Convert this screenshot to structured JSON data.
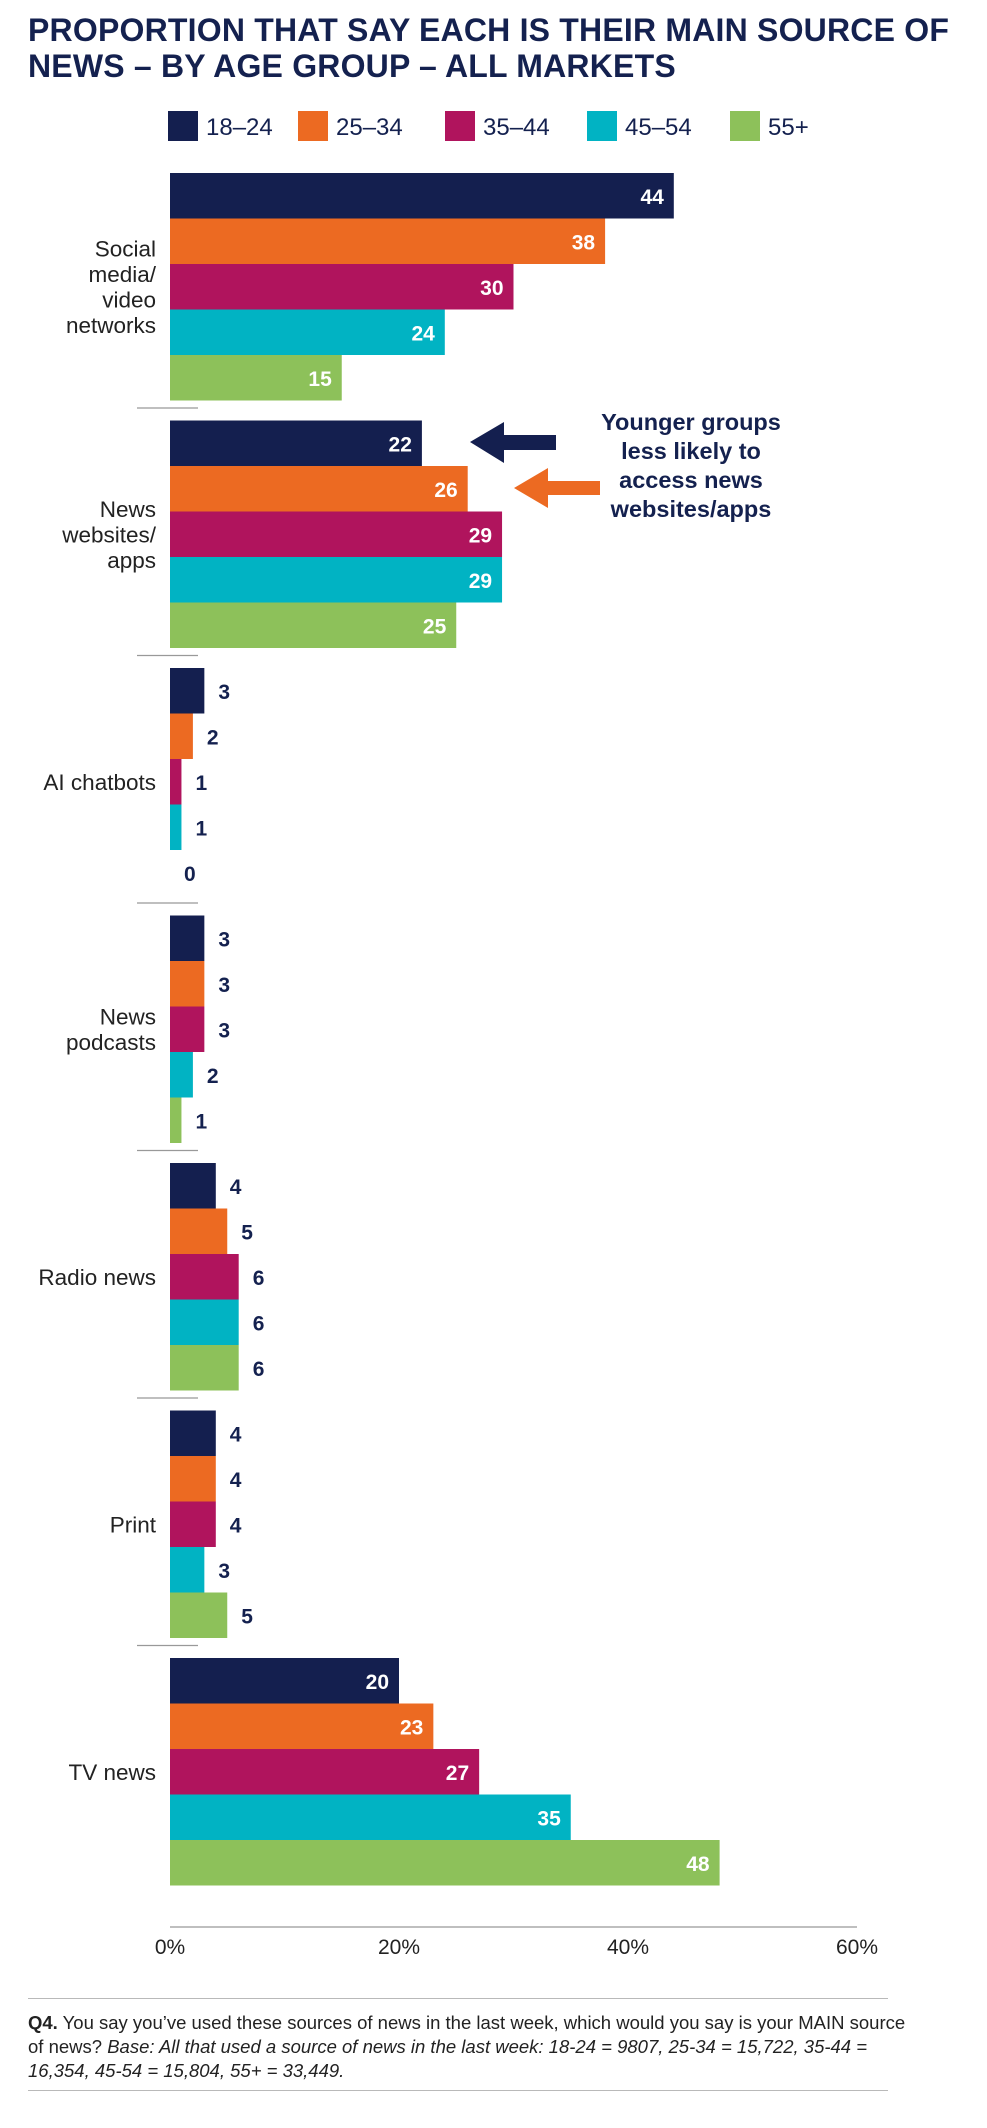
{
  "chart_data": {
    "type": "bar",
    "orientation": "horizontal",
    "title_lines": [
      "PROPORTION THAT SAY EACH IS THEIR MAIN SOURCE OF",
      "NEWS – BY AGE GROUP – ALL MARKETS"
    ],
    "categories": [
      {
        "name": "Social media/video networks",
        "label_lines": [
          "Social",
          "media/",
          "video",
          "networks"
        ]
      },
      {
        "name": "News websites/apps",
        "label_lines": [
          "News",
          "websites/",
          "apps"
        ]
      },
      {
        "name": "AI chatbots",
        "label_lines": [
          "AI chatbots"
        ]
      },
      {
        "name": "News podcasts",
        "label_lines": [
          "News",
          "podcasts"
        ]
      },
      {
        "name": "Radio news",
        "label_lines": [
          "Radio news"
        ]
      },
      {
        "name": "Print",
        "label_lines": [
          "Print"
        ]
      },
      {
        "name": "TV news",
        "label_lines": [
          "TV news"
        ]
      }
    ],
    "series": [
      {
        "name": "18–24",
        "color": "#141f4f",
        "values": [
          44,
          22,
          3,
          3,
          4,
          4,
          20
        ]
      },
      {
        "name": "25–34",
        "color": "#ec6a22",
        "values": [
          38,
          26,
          2,
          3,
          5,
          4,
          23
        ]
      },
      {
        "name": "35–44",
        "color": "#b0145d",
        "values": [
          30,
          29,
          1,
          3,
          6,
          4,
          27
        ]
      },
      {
        "name": "45–54",
        "color": "#01b3c3",
        "values": [
          24,
          29,
          1,
          2,
          6,
          3,
          35
        ]
      },
      {
        "name": "55+",
        "color": "#8dc15a",
        "values": [
          15,
          25,
          0,
          1,
          6,
          5,
          48
        ]
      }
    ],
    "xlim": [
      0,
      60
    ],
    "x_ticks": [
      "0%",
      "20%",
      "40%",
      "60%"
    ],
    "legend_position": "top",
    "annotation": {
      "lines": [
        "Younger groups",
        "less likely to",
        "access news",
        "websites/apps"
      ],
      "arrow_colors": [
        "#141f4f",
        "#ec6a22"
      ]
    }
  },
  "footnote": {
    "question_label": "Q4.",
    "question_text": " You say you’ve used these sources of news in the last week, which would you say is your MAIN source of news? ",
    "base_text": "Base: All that used a source of news in the last week: 18-24 = 9807, 25-34 = 15,722, 35-44 = 16,354, 45-54 = 15,804, 55+ = 33,449."
  }
}
